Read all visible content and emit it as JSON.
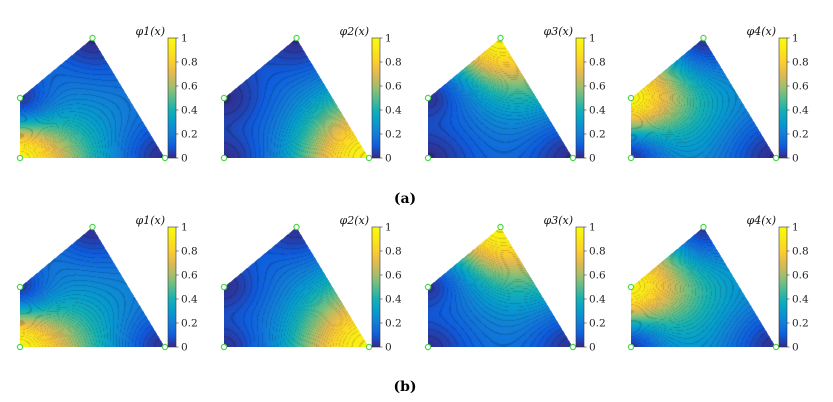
{
  "chart_data": {
    "type": "heatmap",
    "colormap": "parula",
    "vertex_marker_color": "#4cd64c",
    "rows": [
      {
        "label": "(a)",
        "panels": [
          {
            "title": "φ1(x)",
            "field": "phi1",
            "variant": "a"
          },
          {
            "title": "φ2(x)",
            "field": "phi2",
            "variant": "a"
          },
          {
            "title": "φ3(x)",
            "field": "phi3",
            "variant": "a"
          },
          {
            "title": "φ4(x)",
            "field": "phi4",
            "variant": "a"
          }
        ]
      },
      {
        "label": "(b)",
        "panels": [
          {
            "title": "φ1(x)",
            "field": "phi1",
            "variant": "b"
          },
          {
            "title": "φ2(x)",
            "field": "phi2",
            "variant": "b"
          },
          {
            "title": "φ3(x)",
            "field": "phi3",
            "variant": "b"
          },
          {
            "title": "φ4(x)",
            "field": "phi4",
            "variant": "b"
          }
        ]
      }
    ],
    "colorbar": {
      "range": [
        0,
        1
      ],
      "ticks": [
        "0",
        "0.2",
        "0.4",
        "0.6",
        "0.8",
        "1"
      ]
    },
    "domain": {
      "shape": "quadrilateral",
      "vertices": [
        [
          0,
          0
        ],
        [
          1,
          0
        ],
        [
          0.5,
          1
        ],
        [
          0,
          0.5
        ]
      ]
    }
  }
}
